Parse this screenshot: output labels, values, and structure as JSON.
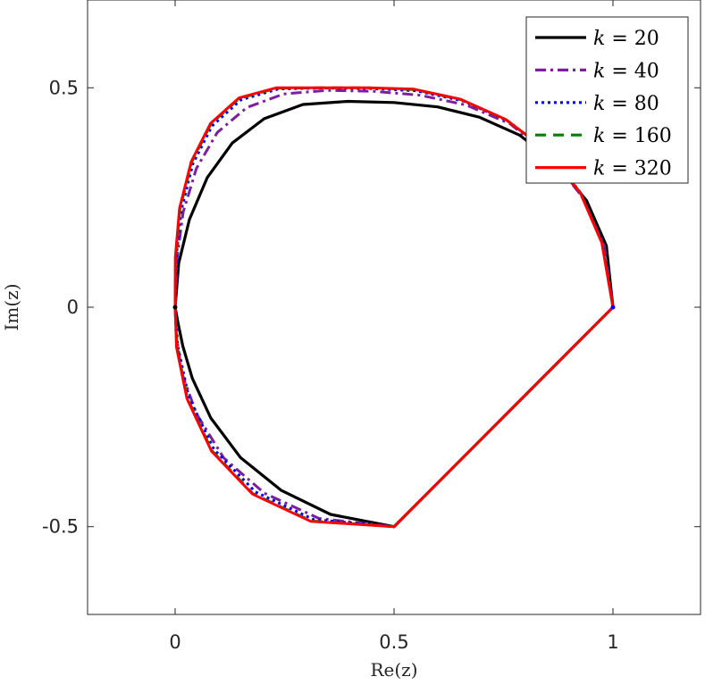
{
  "chart_data": {
    "type": "line",
    "title": "",
    "xlabel": "Re(z)",
    "ylabel": "Im(z)",
    "xlim": [
      -0.2,
      1.2
    ],
    "ylim": [
      -0.7,
      0.7
    ],
    "xticks": [
      0,
      0.5,
      1
    ],
    "xtick_labels": [
      "0",
      "0.5",
      "1"
    ],
    "yticks": [
      -0.5,
      0,
      0.5
    ],
    "ytick_labels": [
      "-0.5",
      "0",
      "0.5"
    ],
    "grid": false,
    "legend_position": "top-right",
    "series": [
      {
        "name": "k = 20",
        "color": "#000000",
        "style": "solid",
        "x": [
          0,
          0.0082,
          0.0327,
          0.0734,
          0.1304,
          0.2034,
          0.2918,
          0.3945,
          0.5,
          0.5995,
          0.6947,
          0.7867,
          0.87,
          0.9397,
          0.9848,
          1.0,
          0.5,
          0.3551,
          0.2418,
          0.1494,
          0.0815,
          0.0391,
          0.0176,
          0.0062,
          0
        ],
        "y": [
          0,
          0.1003,
          0.2,
          0.2955,
          0.374,
          0.4295,
          0.462,
          0.469,
          0.4664,
          0.4564,
          0.4331,
          0.3922,
          0.327,
          0.2427,
          0.14,
          0,
          -0.5,
          -0.472,
          -0.4169,
          -0.3426,
          -0.2524,
          -0.1619,
          -0.0885,
          -0.0334,
          0
        ]
      },
      {
        "name": "k = 40",
        "color": "#7e1e9c",
        "style": "dashdot",
        "x": [
          0,
          0.004,
          0.0183,
          0.0485,
          0.0964,
          0.1637,
          0.248,
          0.3468,
          0.4527,
          0.5595,
          0.6646,
          0.7648,
          0.8551,
          0.9286,
          0.9799,
          1.0,
          0.5,
          0.3285,
          0.2037,
          0.1107,
          0.0487,
          0.0153,
          0.002,
          0
        ],
        "y": [
          0,
          0.1092,
          0.217,
          0.3163,
          0.3983,
          0.455,
          0.486,
          0.494,
          0.492,
          0.483,
          0.4607,
          0.418,
          0.3447,
          0.2532,
          0.1411,
          0,
          -0.5,
          -0.4812,
          -0.4236,
          -0.3429,
          -0.2427,
          -0.1503,
          -0.0583,
          0
        ]
      },
      {
        "name": "k = 80",
        "color": "#0000ff",
        "style": "dotted",
        "x": [
          0,
          0.002,
          0.014,
          0.0404,
          0.0842,
          0.1502,
          0.2359,
          0.3375,
          0.4437,
          0.5506,
          0.6576,
          0.7597,
          0.8527,
          0.9263,
          0.9757,
          1.0,
          0.5,
          0.3158,
          0.1834,
          0.0887,
          0.031,
          0.0061,
          0
        ],
        "y": [
          0,
          0.1114,
          0.2217,
          0.3265,
          0.413,
          0.4726,
          0.4973,
          0.4994,
          0.4983,
          0.493,
          0.47,
          0.4245,
          0.3545,
          0.2602,
          0.1455,
          0,
          -0.5,
          -0.4834,
          -0.4209,
          -0.3241,
          -0.2045,
          -0.0895,
          0
        ]
      },
      {
        "name": "k = 160",
        "color": "#008000",
        "style": "dashed",
        "x": [
          0,
          0.001,
          0.011,
          0.038,
          0.082,
          0.147,
          0.232,
          0.334,
          0.44,
          0.546,
          0.653,
          0.756,
          0.85,
          0.926,
          0.975,
          1.0,
          0.5,
          0.311,
          0.178,
          0.084,
          0.028,
          0.004,
          0
        ],
        "y": [
          0,
          0.113,
          0.224,
          0.331,
          0.418,
          0.476,
          0.499,
          0.5,
          0.5,
          0.496,
          0.473,
          0.427,
          0.356,
          0.26,
          0.146,
          0,
          -0.5,
          -0.487,
          -0.425,
          -0.327,
          -0.207,
          -0.09,
          0
        ]
      },
      {
        "name": "k = 320",
        "color": "#ff0000",
        "style": "solid",
        "x": [
          0,
          0.0005,
          0.01,
          0.037,
          0.081,
          0.146,
          0.231,
          0.333,
          0.439,
          0.545,
          0.652,
          0.755,
          0.849,
          0.925,
          0.9745,
          1.0,
          0.5,
          0.31,
          0.177,
          0.083,
          0.027,
          0.003,
          0
        ],
        "y": [
          0,
          0.114,
          0.225,
          0.332,
          0.419,
          0.477,
          0.5,
          0.5,
          0.5,
          0.497,
          0.474,
          0.428,
          0.357,
          0.261,
          0.147,
          0,
          -0.5,
          -0.488,
          -0.426,
          -0.328,
          -0.208,
          -0.091,
          0
        ]
      }
    ],
    "points": [
      {
        "x": 0,
        "y": 0,
        "color": "#000000"
      },
      {
        "x": 1,
        "y": 0,
        "color": "#0000ff"
      }
    ]
  }
}
